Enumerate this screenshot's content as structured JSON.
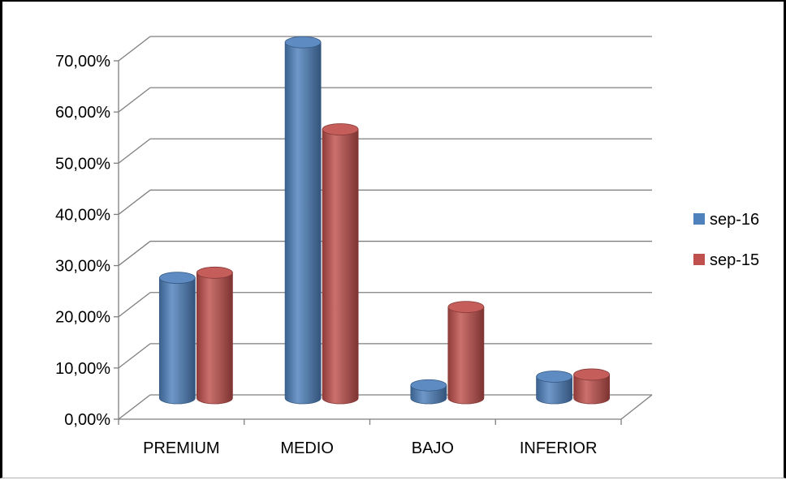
{
  "chart_data": {
    "type": "bar",
    "categories": [
      "PREMIUM",
      "MEDIO",
      "BAJO",
      "INFERIOR"
    ],
    "series": [
      {
        "name": "sep-16",
        "values": [
          23.5,
          69.5,
          2.5,
          4.2
        ],
        "color": "#4f81bd"
      },
      {
        "name": "sep-15",
        "values": [
          24.5,
          52.5,
          17.8,
          4.6
        ],
        "color": "#c0504d"
      }
    ],
    "ylim": [
      0,
      70
    ],
    "yticks": [
      0,
      10,
      20,
      30,
      40,
      50,
      60,
      70
    ],
    "ytick_labels": [
      "0,00%",
      "10,00%",
      "20,00%",
      "30,00%",
      "40,00%",
      "50,00%",
      "60,00%",
      "70,00%"
    ],
    "grid": true,
    "legend_position": "right",
    "style": "3d-cylinder"
  }
}
